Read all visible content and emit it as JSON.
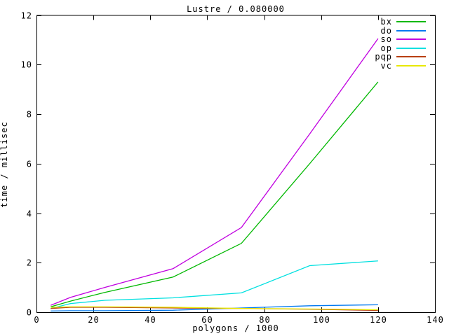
{
  "chart_data": {
    "type": "line",
    "title": "Lustre / 0.080000",
    "xlabel": "polygons / 1000",
    "ylabel": "time / millisec",
    "xlim": [
      0,
      140
    ],
    "ylim": [
      0,
      12
    ],
    "xticks": [
      0,
      20,
      40,
      60,
      80,
      100,
      120,
      140
    ],
    "yticks": [
      0,
      2,
      4,
      6,
      8,
      10,
      12
    ],
    "grid": false,
    "legend_position": "top-right-inside",
    "axis_color": "#000000",
    "x": [
      5,
      12,
      24,
      48,
      72,
      96,
      120
    ],
    "series": [
      {
        "name": "bx",
        "color": "#00b800",
        "values": [
          0.22,
          0.45,
          0.8,
          1.42,
          2.78,
          6.0,
          9.3
        ]
      },
      {
        "name": "do",
        "color": "#0078f0",
        "values": [
          0.05,
          0.06,
          0.06,
          0.08,
          0.17,
          0.26,
          0.3
        ]
      },
      {
        "name": "so",
        "color": "#c000e0",
        "values": [
          0.28,
          0.6,
          1.0,
          1.76,
          3.42,
          7.2,
          11.05
        ]
      },
      {
        "name": "op",
        "color": "#00e0e0",
        "values": [
          0.15,
          0.35,
          0.48,
          0.58,
          0.78,
          1.88,
          2.07
        ]
      },
      {
        "name": "pqp",
        "color": "#b84010",
        "values": [
          0.15,
          0.2,
          0.2,
          0.17,
          0.15,
          0.12,
          0.07
        ]
      },
      {
        "name": "vc",
        "color": "#e8e800",
        "values": [
          0.2,
          0.22,
          0.22,
          0.2,
          0.15,
          0.13,
          0.1
        ]
      }
    ]
  }
}
